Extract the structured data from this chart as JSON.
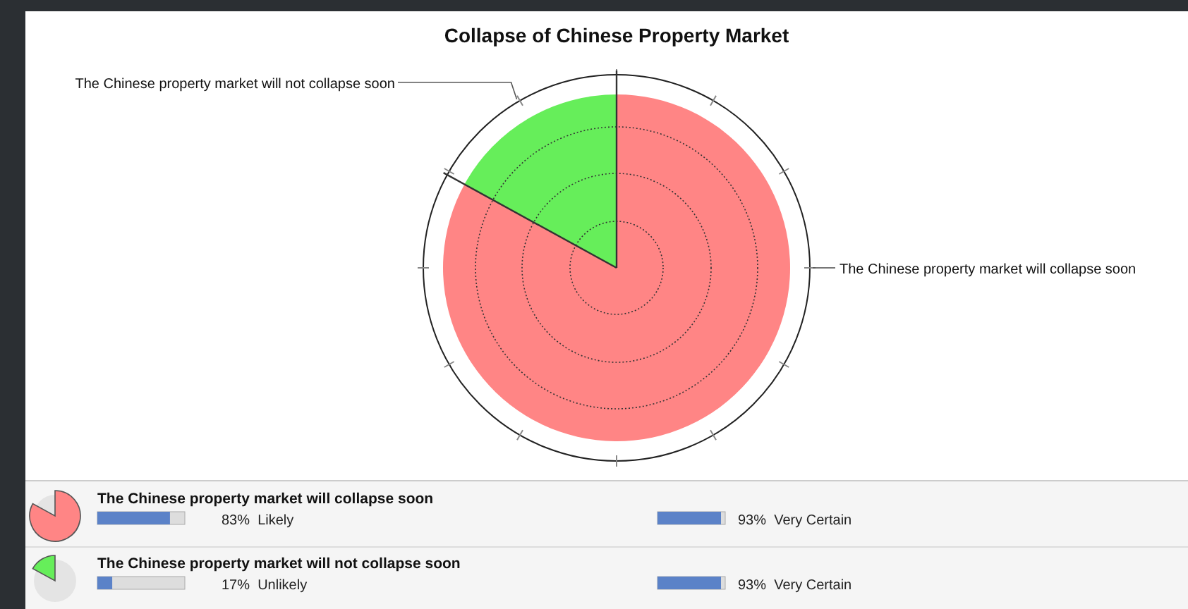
{
  "chart_data": {
    "type": "pie",
    "title": "Collapse of Chinese Property Market",
    "categories": [
      "The Chinese property market will collapse soon",
      "The Chinese property market will not collapse soon"
    ],
    "values": [
      83,
      17
    ],
    "colors": [
      "#ff8585",
      "#66ee5a"
    ],
    "annotations": [
      "83%  Likely",
      "93%  Very Certain",
      "17%  Unlikely",
      "93%  Very Certain"
    ]
  }
}
